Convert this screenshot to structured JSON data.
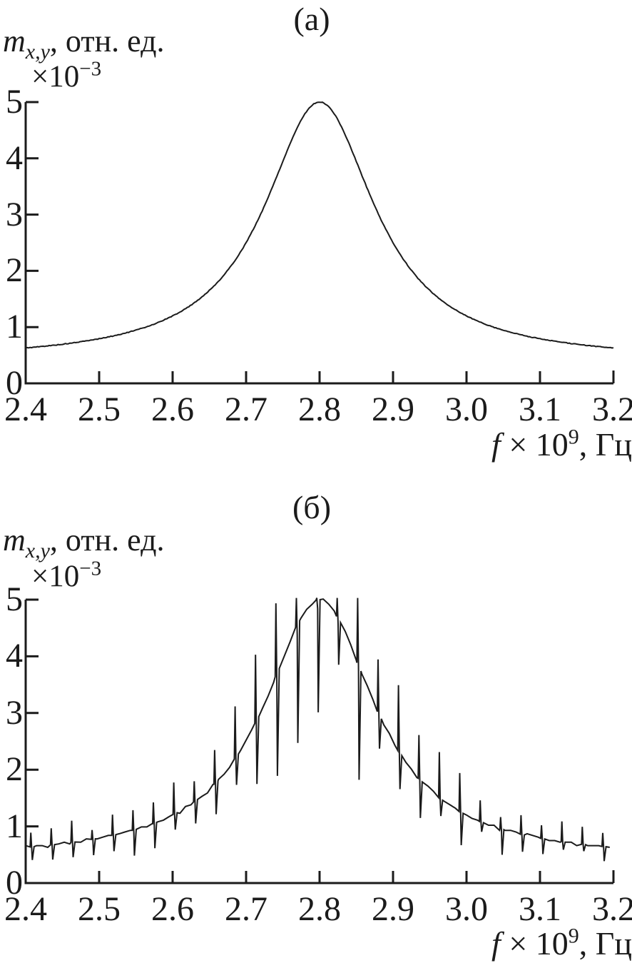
{
  "figure": {
    "background": "#ffffff",
    "ink_color": "#1b1b1b"
  },
  "chart_data": [
    {
      "type": "line",
      "panel_label": "(а)",
      "ylabel": {
        "var": "m",
        "sub": "x,y",
        "rest": ", отн. ед."
      },
      "y_scale": {
        "prefix": "×10",
        "exp": "−3"
      },
      "xlabel": {
        "var": "f",
        "mid": " × 10",
        "exp": "9",
        "rest": ", Гц"
      },
      "x_tick_labels": [
        "2.4",
        "2.5",
        "2.6",
        "2.7",
        "2.8",
        "2.9",
        "3.0",
        "3.1",
        "3.2"
      ],
      "y_tick_labels": [
        "5",
        "4",
        "3",
        "2",
        "1",
        "0"
      ],
      "xlim": [
        2.4,
        3.2
      ],
      "ylim": [
        0,
        5
      ],
      "legend": "none",
      "grid": false,
      "description": "Smooth resonance curve (Lorentzian), peak 5.0×10⁻³ at f = 2.8×10⁹ Hz",
      "points": [
        [
          2.4,
          0.63
        ],
        [
          2.45,
          0.7
        ],
        [
          2.5,
          0.79
        ],
        [
          2.55,
          0.95
        ],
        [
          2.6,
          1.2
        ],
        [
          2.65,
          1.65
        ],
        [
          2.7,
          2.5
        ],
        [
          2.75,
          3.95
        ],
        [
          2.8,
          5.0
        ],
        [
          2.85,
          3.95
        ],
        [
          2.9,
          2.5
        ],
        [
          2.95,
          1.65
        ],
        [
          3.0,
          1.2
        ],
        [
          3.05,
          0.95
        ],
        [
          3.1,
          0.79
        ],
        [
          3.15,
          0.7
        ],
        [
          3.2,
          0.63
        ]
      ],
      "model": {
        "type": "lorentzian_offset",
        "center": 2.8,
        "gamma": 0.0917,
        "amplitude": 4.6,
        "offset": 0.4,
        "sample_step": 0.002,
        "jitter": 0.012,
        "seed": 5
      }
    },
    {
      "type": "line",
      "panel_label": "(б)",
      "ylabel": {
        "var": "m",
        "sub": "x,y",
        "rest": ", отн. ед."
      },
      "y_scale": {
        "prefix": "×10",
        "exp": "−3"
      },
      "xlabel": {
        "var": "f",
        "mid": " × 10",
        "exp": "9",
        "rest": ", Гц"
      },
      "x_tick_labels": [
        "2.4",
        "2.5",
        "2.6",
        "2.7",
        "2.8",
        "2.9",
        "3.0",
        "3.1",
        "3.2"
      ],
      "y_tick_labels": [
        "5",
        "4",
        "3",
        "2",
        "1",
        "0"
      ],
      "xlim": [
        2.4,
        3.2
      ],
      "ylim": [
        0,
        5
      ],
      "legend": "none",
      "grid": false,
      "description": "Same resonance envelope (peak 5.0×10⁻³ at 2.8×10⁹ Hz) with periodic spike noise every ≈0.028×10⁹ Hz",
      "points": [
        [
          2.4,
          0.63
        ],
        [
          2.45,
          0.7
        ],
        [
          2.5,
          0.79
        ],
        [
          2.55,
          0.95
        ],
        [
          2.6,
          1.2
        ],
        [
          2.65,
          1.65
        ],
        [
          2.7,
          2.5
        ],
        [
          2.75,
          3.95
        ],
        [
          2.8,
          5.0
        ],
        [
          2.85,
          3.95
        ],
        [
          2.9,
          2.5
        ],
        [
          2.95,
          1.65
        ],
        [
          3.0,
          1.2
        ],
        [
          3.05,
          0.95
        ],
        [
          3.1,
          0.79
        ],
        [
          3.15,
          0.7
        ],
        [
          3.2,
          0.63
        ]
      ],
      "model": {
        "type": "lorentzian_offset",
        "center": 2.8,
        "gamma": 0.0917,
        "amplitude": 4.6,
        "offset": 0.4,
        "sample_step": 0.0075,
        "jitter": 0.05,
        "seed": 11
      },
      "noise": {
        "spike_start": 2.407,
        "spike_spacing": 0.0278,
        "up_frac_min": 0.18,
        "up_frac_rand": 0.42,
        "down_frac_min": 0.16,
        "down_frac_rand": 0.38,
        "cap": 5.03,
        "floor": 0.1,
        "quant": 0.03
      }
    }
  ]
}
